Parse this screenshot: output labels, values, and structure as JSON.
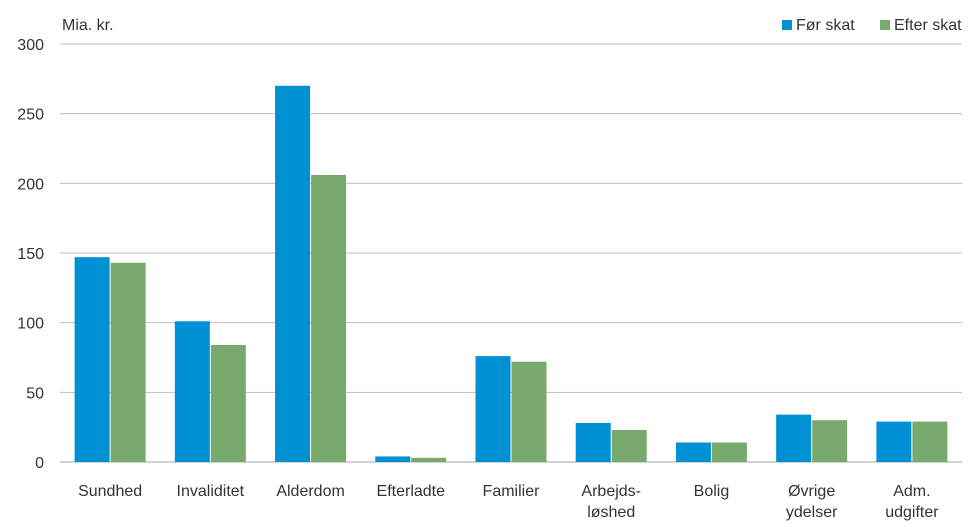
{
  "chart_data": {
    "type": "bar",
    "ylabel": "Mia. kr.",
    "ylim": [
      0,
      300
    ],
    "yticks": [
      0,
      50,
      100,
      150,
      200,
      250,
      300
    ],
    "grid": true,
    "legend_position": "top-right",
    "categories": [
      [
        "Sundhed"
      ],
      [
        "Invaliditet"
      ],
      [
        "Alderdom"
      ],
      [
        "Efterladte"
      ],
      [
        "Familier"
      ],
      [
        "Arbejds-",
        "løshed"
      ],
      [
        "Bolig"
      ],
      [
        "Øvrige",
        "ydelser"
      ],
      [
        "Adm.",
        "udgifter"
      ]
    ],
    "series": [
      {
        "name": "Før skat",
        "color": "#0090d4",
        "values": [
          147,
          101,
          270,
          4,
          76,
          28,
          14,
          34,
          29
        ]
      },
      {
        "name": "Efter skat",
        "color": "#78aa6e",
        "values": [
          143,
          84,
          206,
          3,
          72,
          23,
          14,
          30,
          29
        ]
      }
    ]
  }
}
